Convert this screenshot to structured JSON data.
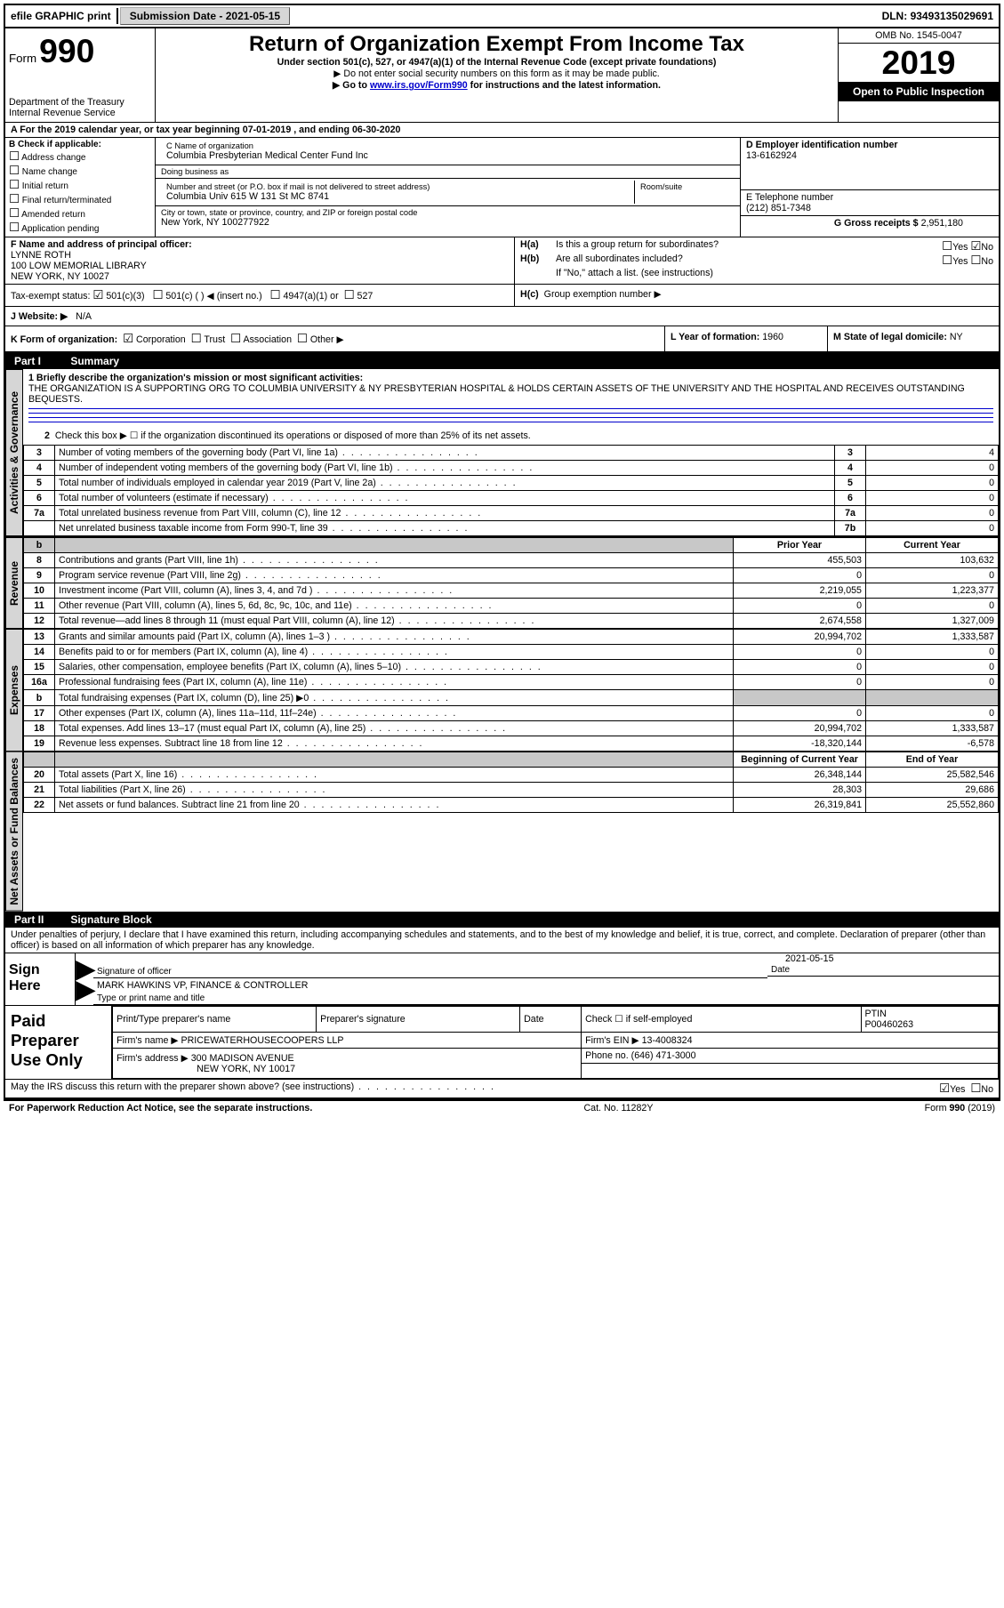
{
  "topbar": {
    "efile": "efile GRAPHIC print",
    "subdate_label": "Submission Date - ",
    "subdate": "2021-05-15",
    "dln_label": "DLN: ",
    "dln": "93493135029691"
  },
  "header": {
    "form_label": "Form",
    "form_number": "990",
    "dept": "Department of the Treasury\nInternal Revenue Service",
    "title": "Return of Organization Exempt From Income Tax",
    "subtitle": "Under section 501(c), 527, or 4947(a)(1) of the Internal Revenue Code (except private foundations)",
    "bullet1": "▶ Do not enter social security numbers on this form as it may be made public.",
    "bullet2_pre": "▶ Go to ",
    "bullet2_link": "www.irs.gov/Form990",
    "bullet2_post": " for instructions and the latest information.",
    "omb": "OMB No. 1545-0047",
    "year": "2019",
    "open": "Open to Public Inspection"
  },
  "period": "A  For the 2019 calendar year, or tax year beginning 07-01-2019    , and ending 06-30-2020",
  "colB": {
    "label": "B Check if applicable:",
    "items": [
      "Address change",
      "Name change",
      "Initial return",
      "Final return/terminated",
      "Amended return",
      "Application pending"
    ]
  },
  "colC": {
    "name_label": "C Name of organization",
    "name": "Columbia Presbyterian Medical Center Fund Inc",
    "dba_label": "Doing business as",
    "dba": "",
    "street_label": "Number and street (or P.O. box if mail is not delivered to street address)",
    "room_label": "Room/suite",
    "street": "Columbia Univ 615 W 131 St MC 8741",
    "city_label": "City or town, state or province, country, and ZIP or foreign postal code",
    "city": "New York, NY  100277922"
  },
  "colD": {
    "ein_label": "D Employer identification number",
    "ein": "13-6162924",
    "phone_label": "E Telephone number",
    "phone": "(212) 851-7348",
    "gross_label": "G Gross receipts $ ",
    "gross": "2,951,180"
  },
  "rowF": {
    "label": "F  Name and address of principal officer:",
    "name": "LYNNE ROTH",
    "addr1": "100 LOW MEMORIAL LIBRARY",
    "addr2": "NEW YORK, NY  10027"
  },
  "rowH": {
    "a": "Is this a group return for subordinates?",
    "b": "Are all subordinates included?",
    "b_note": "If \"No,\" attach a list. (see instructions)",
    "c": "Group exemption number ▶",
    "yes": "Yes",
    "no": "No"
  },
  "rowI": {
    "label": "Tax-exempt status:",
    "c3": "501(c)(3)",
    "c_other": "501(c) (   ) ◀ (insert no.)",
    "a4947": "4947(a)(1) or",
    "s527": "527"
  },
  "rowJ": {
    "label": "J   Website: ▶",
    "value": "N/A"
  },
  "rowK": {
    "label": "K Form of organization:",
    "corp": "Corporation",
    "trust": "Trust",
    "assoc": "Association",
    "other": "Other ▶"
  },
  "rowL": {
    "label": "L Year of formation: ",
    "value": "1960"
  },
  "rowM": {
    "label": "M State of legal domicile: ",
    "value": "NY"
  },
  "part1": {
    "header_pt": "Part I",
    "header_title": "Summary",
    "side_act": "Activities & Governance",
    "side_rev": "Revenue",
    "side_exp": "Expenses",
    "side_net": "Net Assets or Fund Balances",
    "line1_label": "1  Briefly describe the organization's mission or most significant activities:",
    "line1_text": "THE ORGANIZATION IS A SUPPORTING ORG TO COLUMBIA UNIVERSITY & NY PRESBYTERIAN HOSPITAL & HOLDS CERTAIN ASSETS OF THE UNIVERSITY AND THE HOSPITAL AND RECEIVES OUTSTANDING BEQUESTS.",
    "line2": "Check this box ▶ ☐  if the organization discontinued its operations or disposed of more than 25% of its net assets.",
    "rows_act": [
      {
        "n": "3",
        "d": "Number of voting members of the governing body (Part VI, line 1a)",
        "box": "3",
        "v": "4"
      },
      {
        "n": "4",
        "d": "Number of independent voting members of the governing body (Part VI, line 1b)",
        "box": "4",
        "v": "0"
      },
      {
        "n": "5",
        "d": "Total number of individuals employed in calendar year 2019 (Part V, line 2a)",
        "box": "5",
        "v": "0"
      },
      {
        "n": "6",
        "d": "Total number of volunteers (estimate if necessary)",
        "box": "6",
        "v": "0"
      },
      {
        "n": "7a",
        "d": "Total unrelated business revenue from Part VIII, column (C), line 12",
        "box": "7a",
        "v": "0"
      },
      {
        "n": "",
        "d": "Net unrelated business taxable income from Form 990-T, line 39",
        "box": "7b",
        "v": "0"
      }
    ],
    "col_prior": "Prior Year",
    "col_current": "Current Year",
    "rows_rev": [
      {
        "n": "8",
        "d": "Contributions and grants (Part VIII, line 1h)",
        "p": "455,503",
        "c": "103,632"
      },
      {
        "n": "9",
        "d": "Program service revenue (Part VIII, line 2g)",
        "p": "0",
        "c": "0"
      },
      {
        "n": "10",
        "d": "Investment income (Part VIII, column (A), lines 3, 4, and 7d )",
        "p": "2,219,055",
        "c": "1,223,377"
      },
      {
        "n": "11",
        "d": "Other revenue (Part VIII, column (A), lines 5, 6d, 8c, 9c, 10c, and 11e)",
        "p": "0",
        "c": "0"
      },
      {
        "n": "12",
        "d": "Total revenue—add lines 8 through 11 (must equal Part VIII, column (A), line 12)",
        "p": "2,674,558",
        "c": "1,327,009"
      }
    ],
    "rows_exp": [
      {
        "n": "13",
        "d": "Grants and similar amounts paid (Part IX, column (A), lines 1–3 )",
        "p": "20,994,702",
        "c": "1,333,587"
      },
      {
        "n": "14",
        "d": "Benefits paid to or for members (Part IX, column (A), line 4)",
        "p": "0",
        "c": "0"
      },
      {
        "n": "15",
        "d": "Salaries, other compensation, employee benefits (Part IX, column (A), lines 5–10)",
        "p": "0",
        "c": "0"
      },
      {
        "n": "16a",
        "d": "Professional fundraising fees (Part IX, column (A), line 11e)",
        "p": "0",
        "c": "0"
      },
      {
        "n": "b",
        "d": "Total fundraising expenses (Part IX, column (D), line 25) ▶0",
        "p": "__grey__",
        "c": "__grey__"
      },
      {
        "n": "17",
        "d": "Other expenses (Part IX, column (A), lines 11a–11d, 11f–24e)",
        "p": "0",
        "c": "0"
      },
      {
        "n": "18",
        "d": "Total expenses. Add lines 13–17 (must equal Part IX, column (A), line 25)",
        "p": "20,994,702",
        "c": "1,333,587"
      },
      {
        "n": "19",
        "d": "Revenue less expenses. Subtract line 18 from line 12",
        "p": "-18,320,144",
        "c": "-6,578"
      }
    ],
    "col_begin": "Beginning of Current Year",
    "col_end": "End of Year",
    "rows_net": [
      {
        "n": "20",
        "d": "Total assets (Part X, line 16)",
        "p": "26,348,144",
        "c": "25,582,546"
      },
      {
        "n": "21",
        "d": "Total liabilities (Part X, line 26)",
        "p": "28,303",
        "c": "29,686"
      },
      {
        "n": "22",
        "d": "Net assets or fund balances. Subtract line 21 from line 20",
        "p": "26,319,841",
        "c": "25,552,860"
      }
    ]
  },
  "part2": {
    "header_pt": "Part II",
    "header_title": "Signature Block",
    "declaration": "Under penalties of perjury, I declare that I have examined this return, including accompanying schedules and statements, and to the best of my knowledge and belief, it is true, correct, and complete. Declaration of preparer (other than officer) is based on all information of which preparer has any knowledge.",
    "sign_here": "Sign Here",
    "sig_officer": "Signature of officer",
    "date_label": "Date",
    "date": "2021-05-15",
    "officer_name": "MARK HAWKINS VP, FINANCE & CONTROLLER",
    "type_title": "Type or print name and title",
    "paid": "Paid Preparer Use Only",
    "prep_name_label": "Print/Type preparer's name",
    "prep_sig_label": "Preparer's signature",
    "check_self": "Check ☐ if self-employed",
    "ptin_label": "PTIN",
    "ptin": "P00460263",
    "firm_name_label": "Firm's name    ▶ ",
    "firm_name": "PRICEWATERHOUSECOOPERS LLP",
    "firm_ein_label": "Firm's EIN ▶ ",
    "firm_ein": "13-4008324",
    "firm_addr_label": "Firm's address ▶ ",
    "firm_addr1": "300 MADISON AVENUE",
    "firm_addr2": "NEW YORK, NY  10017",
    "firm_phone_label": "Phone no. ",
    "firm_phone": "(646) 471-3000",
    "discuss": "May the IRS discuss this return with the preparer shown above? (see instructions)"
  },
  "footer": {
    "pra": "For Paperwork Reduction Act Notice, see the separate instructions.",
    "cat": "Cat. No. 11282Y",
    "form": "Form 990 (2019)"
  }
}
